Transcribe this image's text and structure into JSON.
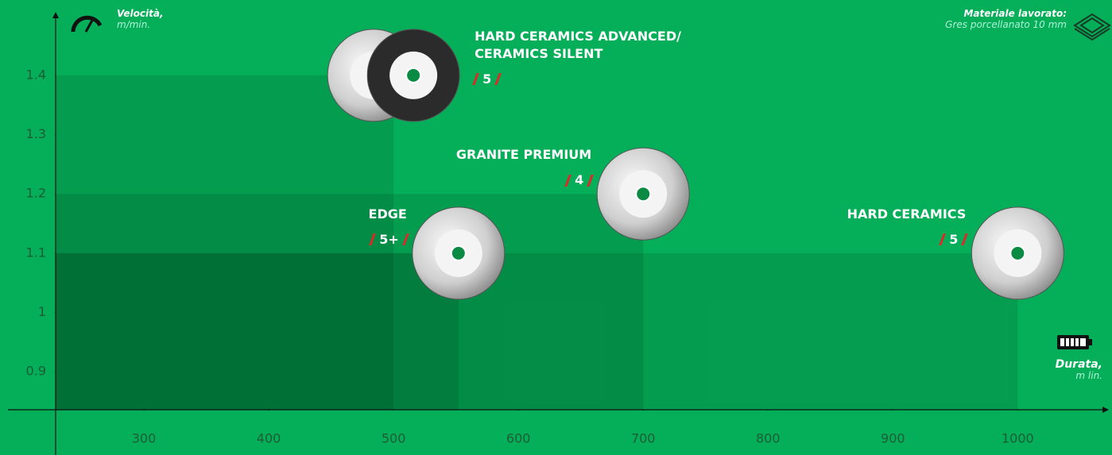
{
  "chart_data": {
    "type": "scatter",
    "y_label": "Velocità,",
    "y_unit": "m/min.",
    "x_label": "Durata,",
    "x_unit": "m lin.",
    "material_label": "Materiale lavorato:",
    "material": "Gres porcellanato 10 mm",
    "categories": [
      "HARD CERAMICS ADVANCED/ CERAMICS SILENT",
      "EDGE",
      "GRANITE PREMIUM",
      "HARD CERAMICS"
    ],
    "x": [
      500,
      552,
      700,
      1000
    ],
    "values": [
      1.4,
      1.1,
      1.2,
      1.1
    ],
    "scores": [
      "5",
      "5+",
      "4",
      "5"
    ],
    "xlim": [
      229.3,
      1073
    ],
    "ylim": [
      0.836,
      1.507
    ],
    "xticks": [
      300,
      400,
      500,
      600,
      700,
      800,
      900,
      1000
    ],
    "yticks": [
      0.9,
      1.0,
      1.1,
      1.2,
      1.3,
      1.4
    ],
    "color": "#000000",
    "background": "#05ae58"
  }
}
